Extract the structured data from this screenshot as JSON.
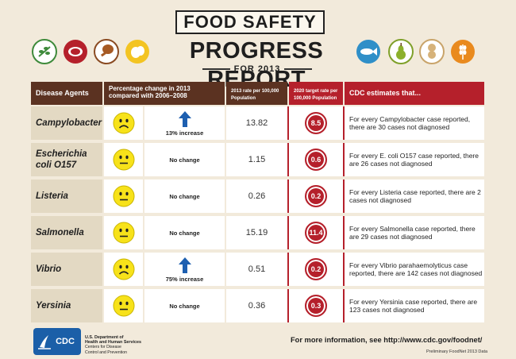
{
  "header": {
    "title": "FOOD SAFETY",
    "report_title": "PROGRESS REPORT",
    "subtitle": "FOR 2013",
    "icons_left": [
      "herb-icon",
      "meat-icon",
      "poultry-icon",
      "egg-icon"
    ],
    "icons_right": [
      "fish-icon",
      "pear-icon",
      "peanut-icon",
      "wheat-icon"
    ]
  },
  "table": {
    "headers": {
      "agents": "Disease Agents",
      "change": "Percentage change in 2013 compared with 2006–2008",
      "rate": "2013 rate per 100,000 Population",
      "target": "2020 target rate per 100,000 Population",
      "estimates": "CDC estimates that..."
    },
    "rows": [
      {
        "agent": "Campylobacter",
        "face": "sad",
        "arrow": true,
        "change": "13% increase",
        "rate": "13.82",
        "target": "8.5",
        "estimate": "For every Campylobacter case reported, there are 30 cases not diagnosed"
      },
      {
        "agent": "Escherichia coli O157",
        "face": "neutral",
        "arrow": false,
        "change": "No change",
        "rate": "1.15",
        "target": "0.6",
        "estimate": "For every E. coli O157 case reported, there are 26 cases not diagnosed"
      },
      {
        "agent": "Listeria",
        "face": "neutral",
        "arrow": false,
        "change": "No change",
        "rate": "0.26",
        "target": "0.2",
        "estimate": "For every Listeria case reported, there are 2 cases not diagnosed"
      },
      {
        "agent": "Salmonella",
        "face": "neutral",
        "arrow": false,
        "change": "No change",
        "rate": "15.19",
        "target": "11.4",
        "estimate": "For every Salmonella case reported, there are 29 cases not diagnosed"
      },
      {
        "agent": "Vibrio",
        "face": "sad",
        "arrow": true,
        "change": "75% increase",
        "rate": "0.51",
        "target": "0.2",
        "estimate": "For every Vibrio parahaemolyticus case reported, there are 142 cases not diagnosed"
      },
      {
        "agent": "Yersinia",
        "face": "neutral",
        "arrow": false,
        "change": "No change",
        "rate": "0.36",
        "target": "0.3",
        "estimate": "For every Yersinia case reported, there are 123 cases not diagnosed"
      }
    ]
  },
  "footer": {
    "cdc": "CDC",
    "hhs_line1": "U.S. Department of",
    "hhs_line2": "Health and Human Services",
    "hhs_line3": "Centers for Disease",
    "hhs_line4": "Control and Prevention",
    "more_info": "For more information, see http://www.cdc.gov/foodnet/",
    "data_note": "Preliminary FoodNet 2013 Data"
  },
  "colors": {
    "header_dark": "#5b3221",
    "header_red": "#b5202b",
    "face_yellow": "#f7e21a",
    "arrow_blue": "#1d5fb0"
  }
}
